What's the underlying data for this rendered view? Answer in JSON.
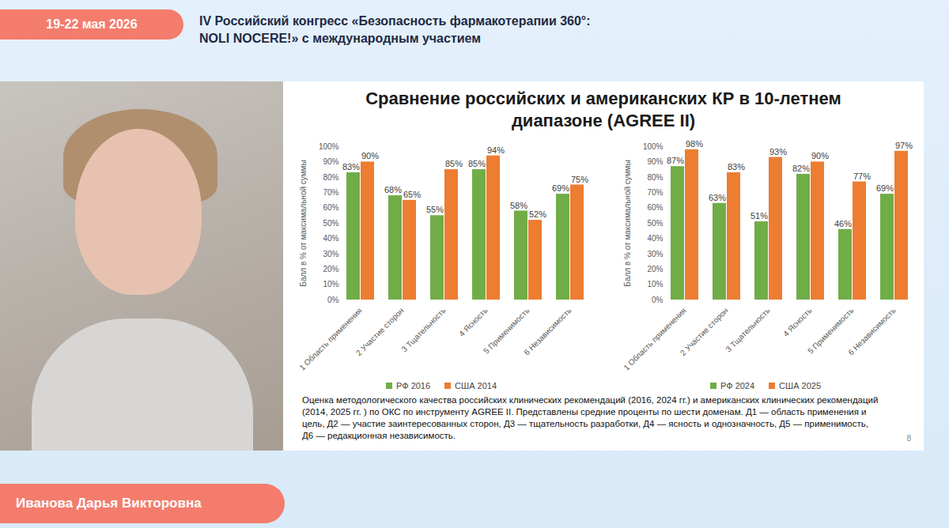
{
  "header": {
    "dates": "19-22 мая 2026",
    "title_lines": [
      "IV Российский конгресс «Безопасность фармакотерапии 360°:",
      "NOLI NOCERE!»  с международным участием"
    ]
  },
  "speaker": "Иванова Дарья Викторовна",
  "slide": {
    "title_lines": [
      "Сравнение российских и американских КР в 10-летнем",
      "диапазоне (AGREE II)"
    ],
    "caption": "Оценка методологического качества российских клинических рекомендаций (2016, 2024 гг.) и американских клинических рекомендаций (2014, 2025 гг. ) по ОКС по инструменту AGREE II. Представлены средние проценты по шести доменам. Д1 — область применения и цель, Д2 — участие заинтересованных сторон, Д3 — тщательность разработки, Д4 — ясность и однозначность, Д5 — применимость, Д6 — редакционная независимость.",
    "page": "8"
  },
  "chart_data": [
    {
      "type": "bar",
      "categories": [
        "1 Область применения",
        "2 Участие сторон",
        "3 Тщательность",
        "4 Ясность",
        "5 Применимость",
        "6 Независимость"
      ],
      "series": [
        {
          "name": "РФ 2016",
          "color": "#70ad47",
          "values": [
            83,
            68,
            55,
            85,
            58,
            69
          ],
          "value_labels": [
            "83%",
            "68%",
            "55%",
            "85%",
            "58%",
            "69%"
          ]
        },
        {
          "name": "США 2014",
          "color": "#ed7d31",
          "values": [
            90,
            65,
            85,
            94,
            52,
            75
          ],
          "value_labels": [
            "90%",
            "65%",
            "85%",
            "94%",
            "52%",
            "75%"
          ]
        }
      ],
      "ylabel": "Балл в % от максимальной суммы",
      "ylim": [
        0,
        100
      ],
      "yticks": [
        {
          "value": 0,
          "label": "0%"
        },
        {
          "value": 10,
          "label": "10%"
        },
        {
          "value": 20,
          "label": "20%"
        },
        {
          "value": 30,
          "label": "30%"
        },
        {
          "value": 40,
          "label": "40%"
        },
        {
          "value": 50,
          "label": "50%"
        },
        {
          "value": 60,
          "label": "60%"
        },
        {
          "value": 70,
          "label": "70%"
        },
        {
          "value": 80,
          "label": "80%"
        },
        {
          "value": 90,
          "label": "90%"
        },
        {
          "value": 100,
          "label": "100%"
        }
      ],
      "grid": false,
      "data_labels": true,
      "legend": "bottom"
    },
    {
      "type": "bar",
      "categories": [
        "1 Область применения",
        "2 Участие сторон",
        "3 Тщательность",
        "4 Ясность",
        "5 Применимость",
        "6 Независимость"
      ],
      "series": [
        {
          "name": "РФ 2024",
          "color": "#70ad47",
          "values": [
            87,
            63,
            51,
            82,
            46,
            69
          ],
          "value_labels": [
            "87%",
            "63%",
            "51%",
            "82%",
            "46%",
            "69%"
          ]
        },
        {
          "name": "США 2025",
          "color": "#ed7d31",
          "values": [
            98,
            83,
            93,
            90,
            77,
            97
          ],
          "value_labels": [
            "98%",
            "83%",
            "93%",
            "90%",
            "77%",
            "97%"
          ]
        }
      ],
      "ylabel": "Балл в % от максимальной суммы",
      "ylim": [
        0,
        100
      ],
      "yticks": [
        {
          "value": 0,
          "label": "0%"
        },
        {
          "value": 10,
          "label": "10%"
        },
        {
          "value": 20,
          "label": "20%"
        },
        {
          "value": 30,
          "label": "30%"
        },
        {
          "value": 40,
          "label": "40%"
        },
        {
          "value": 50,
          "label": "50%"
        },
        {
          "value": 60,
          "label": "60%"
        },
        {
          "value": 70,
          "label": "70%"
        },
        {
          "value": 80,
          "label": "80%"
        },
        {
          "value": 90,
          "label": "90%"
        },
        {
          "value": 100,
          "label": "100%"
        }
      ],
      "grid": false,
      "data_labels": true,
      "legend": "bottom"
    }
  ]
}
